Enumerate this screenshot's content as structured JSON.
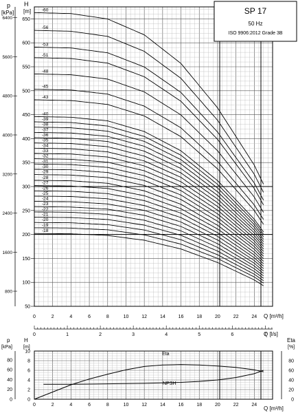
{
  "chart_data": [
    {
      "type": "line",
      "title": "SP 17",
      "subtitle": "50 Hz",
      "standard": "ISO 9906:2012 Grade 3B",
      "xlabel": "Q [m³/h]",
      "x2label": "Q [l/s]",
      "ylabel": "H [m]",
      "y2label": "p [kPa]",
      "H_label": "H",
      "H_unit": "[m]",
      "p_label": "p",
      "p_unit": "[kPa]",
      "xlim": [
        0,
        26
      ],
      "x_ticks": [
        "0",
        "2",
        "4",
        "6",
        "8",
        "10",
        "12",
        "14",
        "16",
        "18",
        "20",
        "22",
        "24"
      ],
      "x2_ticks": [
        "0",
        "1",
        "2",
        "3",
        "4",
        "5",
        "6",
        "7"
      ],
      "x2_tick_values": [
        0,
        1,
        2,
        3,
        4,
        5,
        6,
        7
      ],
      "ylim": [
        50,
        675
      ],
      "y_ticks": [
        "50",
        "100",
        "150",
        "200",
        "250",
        "300",
        "350",
        "400",
        "450",
        "500",
        "550",
        "600",
        "650"
      ],
      "kpa_ticks": [
        "800",
        "1600",
        "2400",
        "3200",
        "4000",
        "4800",
        "5600",
        "6400"
      ],
      "kpa_tick_values": [
        800,
        1600,
        2400,
        3200,
        4000,
        4800,
        5600,
        6400
      ],
      "grid": true,
      "series_x": [
        0,
        4,
        8,
        12,
        16,
        20,
        24,
        25
      ],
      "curve_shape": [
        1.0,
        0.997,
        0.98,
        0.93,
        0.84,
        0.7,
        0.52,
        0.46
      ],
      "stage_labels": [
        "60",
        "56",
        "53",
        "51",
        "48",
        "45",
        "43",
        "40",
        "39",
        "38",
        "37",
        "36",
        "35",
        "34",
        "33",
        "32",
        "31",
        "30",
        "29",
        "28",
        "27",
        "26",
        "25",
        "24",
        "23",
        "22",
        "21",
        "20",
        "19",
        "18"
      ],
      "stage_heads": [
        663,
        626,
        591,
        569,
        535,
        503,
        481,
        446,
        435,
        424,
        413,
        402,
        391,
        380,
        369,
        358,
        347,
        336,
        325,
        313,
        302,
        291,
        280,
        269,
        258,
        247,
        236,
        225,
        214,
        202
      ]
    },
    {
      "type": "line",
      "p_label": "p",
      "p_unit": "[kPa]",
      "H_label": "H",
      "H_unit": "[m]",
      "eta_label": "Eta",
      "eta_unit": "[%]",
      "xlabel": "Q [m³/h]",
      "xlim": [
        0,
        26
      ],
      "x_ticks": [
        "0",
        "2",
        "4",
        "6",
        "8",
        "10",
        "12",
        "14",
        "16",
        "18",
        "20",
        "22",
        "24"
      ],
      "ylim": [
        0,
        10
      ],
      "H_ticks": [
        "0",
        "2",
        "4",
        "6",
        "8",
        "10"
      ],
      "p_ticks": [
        "0",
        "20",
        "40",
        "60",
        "80"
      ],
      "eta_ticks": [
        "0",
        "20",
        "40",
        "60",
        "80"
      ],
      "grid": true,
      "series": [
        {
          "name": "Eta",
          "x": [
            0,
            2,
            4,
            6,
            8,
            10,
            12,
            14,
            16,
            18,
            20,
            22,
            24,
            25
          ],
          "y": [
            0,
            15,
            30,
            42,
            52,
            61,
            68,
            71,
            72,
            71,
            69,
            66,
            61,
            57
          ],
          "axis": "eta"
        },
        {
          "name": "NPSH",
          "x": [
            1,
            4,
            8,
            12,
            16,
            18,
            20,
            22,
            24,
            25
          ],
          "y": [
            3.1,
            3.1,
            3.2,
            3.3,
            3.5,
            3.7,
            4.0,
            4.5,
            5.3,
            6.0
          ],
          "axis": "H"
        }
      ]
    }
  ]
}
